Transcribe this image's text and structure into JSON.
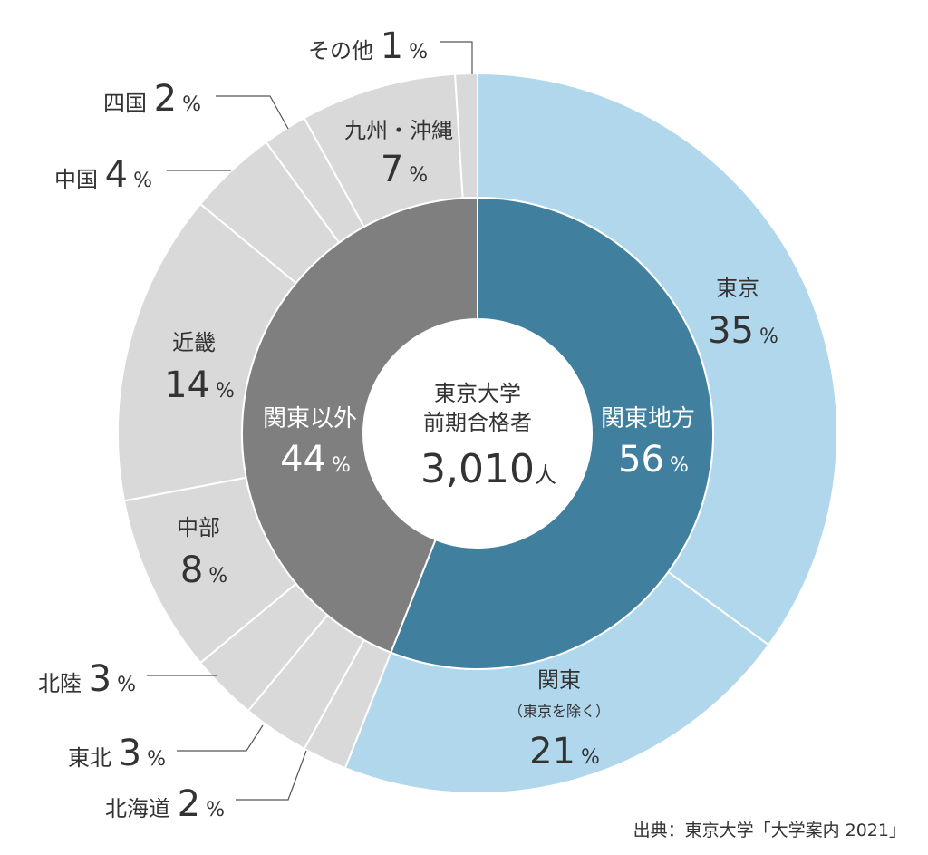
{
  "chart_data": {
    "type": "pie",
    "variant": "nested-donut",
    "center": {
      "line1": "東京大学",
      "line2": "前期合格者",
      "total": "3,010",
      "unit": "人"
    },
    "inner_ring": [
      {
        "label": "関東地方",
        "value": 56,
        "color": "#417f9f"
      },
      {
        "label": "関東以外",
        "value": 44,
        "color": "#7f7f7f"
      }
    ],
    "outer_ring": [
      {
        "label": "東京",
        "value": 35,
        "color": "#b1d7ec"
      },
      {
        "label": "関東",
        "sublabel": "（東京を除く）",
        "value": 21,
        "color": "#b1d7ec"
      },
      {
        "label": "北海道",
        "value": 2,
        "color": "#d9d9d9"
      },
      {
        "label": "東北",
        "value": 3,
        "color": "#d9d9d9"
      },
      {
        "label": "北陸",
        "value": 3,
        "color": "#d9d9d9"
      },
      {
        "label": "中部",
        "value": 8,
        "color": "#d9d9d9"
      },
      {
        "label": "近畿",
        "value": 14,
        "color": "#d9d9d9"
      },
      {
        "label": "中国",
        "value": 4,
        "color": "#d9d9d9"
      },
      {
        "label": "四国",
        "value": 2,
        "color": "#d9d9d9"
      },
      {
        "label": "九州・沖縄",
        "value": 7,
        "color": "#d9d9d9"
      },
      {
        "label": "その他",
        "value": 1,
        "color": "#d9d9d9"
      }
    ],
    "percent_sign": "%",
    "source": "出典：東京大学「大学案内 2021」"
  }
}
